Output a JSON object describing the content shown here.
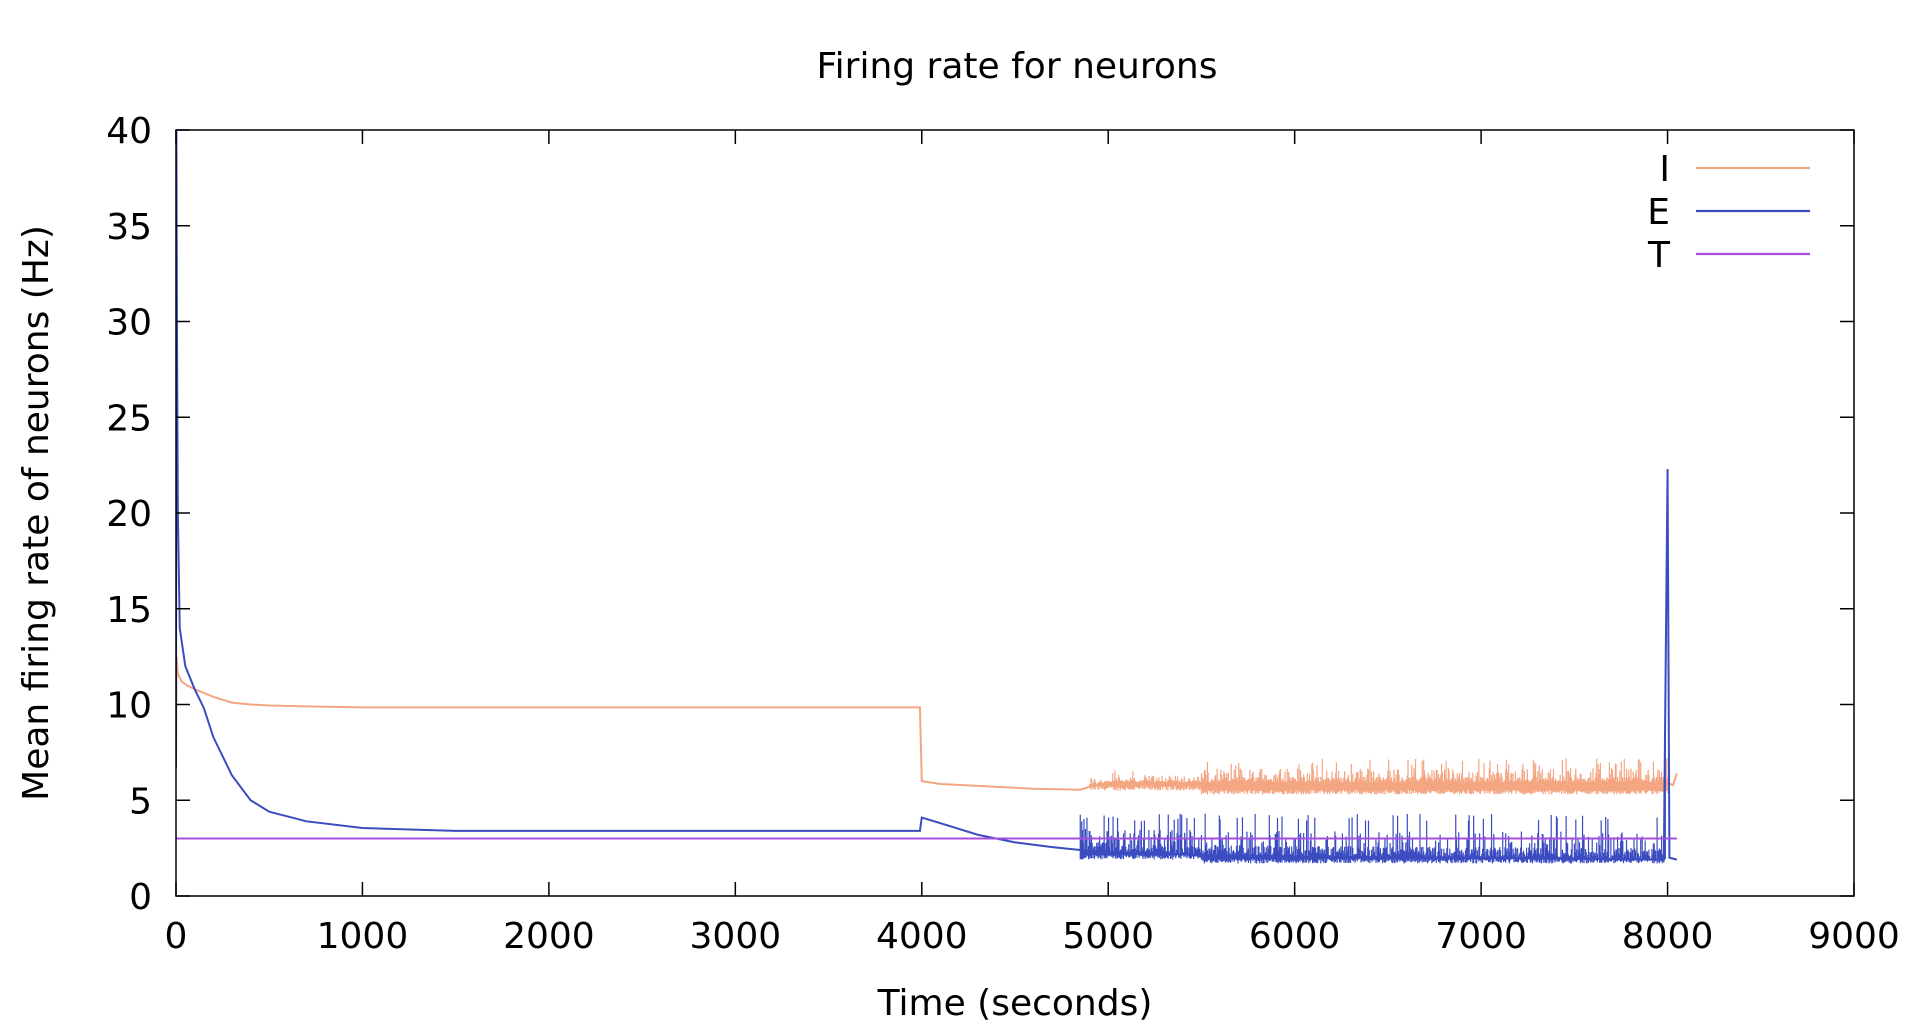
{
  "chart_data": {
    "type": "line",
    "title": "Firing rate for neurons",
    "xlabel": "Time (seconds)",
    "ylabel": "Mean firing rate of neurons (Hz)",
    "xlim": [
      0,
      9000
    ],
    "ylim": [
      0,
      40
    ],
    "xticks": [
      0,
      1000,
      2000,
      3000,
      4000,
      5000,
      6000,
      7000,
      8000,
      9000
    ],
    "yticks": [
      0,
      5,
      10,
      15,
      20,
      25,
      30,
      35,
      40
    ],
    "grid": false,
    "legend_position": "top-right",
    "series": [
      {
        "name": "I",
        "color": "#f4a582",
        "points": [
          [
            0,
            6.7
          ],
          [
            3,
            12.5
          ],
          [
            10,
            11.6
          ],
          [
            30,
            11.2
          ],
          [
            60,
            11.0
          ],
          [
            100,
            10.8
          ],
          [
            200,
            10.4
          ],
          [
            300,
            10.1
          ],
          [
            400,
            10.0
          ],
          [
            500,
            9.95
          ],
          [
            700,
            9.9
          ],
          [
            1000,
            9.85
          ],
          [
            1500,
            9.85
          ],
          [
            2000,
            9.85
          ],
          [
            2500,
            9.85
          ],
          [
            3000,
            9.85
          ],
          [
            3500,
            9.85
          ],
          [
            3990,
            9.85
          ],
          [
            4000,
            6.0
          ],
          [
            4100,
            5.85
          ],
          [
            4300,
            5.75
          ],
          [
            4600,
            5.6
          ],
          [
            4850,
            5.55
          ],
          [
            4900,
            5.7
          ],
          [
            5000,
            5.9
          ],
          [
            5500,
            5.9
          ],
          [
            6000,
            5.9
          ],
          [
            6500,
            5.9
          ],
          [
            7000,
            5.9
          ],
          [
            7500,
            5.9
          ],
          [
            8000,
            5.9
          ],
          [
            8030,
            5.8
          ],
          [
            8050,
            6.4
          ]
        ],
        "noise": [
          {
            "from": 4900,
            "to": 5500,
            "low": 5.5,
            "high": 6.6
          },
          {
            "from": 5500,
            "to": 8000,
            "low": 5.3,
            "high": 7.2
          }
        ]
      },
      {
        "name": "E",
        "color": "#3b4cc0",
        "points": [
          [
            0,
            6.7
          ],
          [
            2,
            40
          ],
          [
            5,
            30
          ],
          [
            10,
            20
          ],
          [
            20,
            14
          ],
          [
            50,
            12
          ],
          [
            100,
            10.8
          ],
          [
            150,
            9.8
          ],
          [
            200,
            8.3
          ],
          [
            300,
            6.3
          ],
          [
            400,
            5.0
          ],
          [
            500,
            4.4
          ],
          [
            700,
            3.9
          ],
          [
            1000,
            3.55
          ],
          [
            1500,
            3.4
          ],
          [
            2000,
            3.4
          ],
          [
            2500,
            3.4
          ],
          [
            3000,
            3.4
          ],
          [
            3500,
            3.4
          ],
          [
            3990,
            3.4
          ],
          [
            4000,
            4.1
          ],
          [
            4100,
            3.8
          ],
          [
            4300,
            3.2
          ],
          [
            4500,
            2.8
          ],
          [
            4700,
            2.55
          ],
          [
            4850,
            2.4
          ],
          [
            5000,
            2.3
          ],
          [
            5500,
            2.15
          ],
          [
            6000,
            2.05
          ],
          [
            7000,
            2.0
          ],
          [
            7980,
            1.9
          ],
          [
            8000,
            22.3
          ],
          [
            8010,
            2.0
          ],
          [
            8050,
            1.9
          ]
        ],
        "noise": [
          {
            "from": 4850,
            "to": 5500,
            "low": 1.9,
            "high": 4.3
          },
          {
            "from": 5500,
            "to": 7990,
            "low": 1.7,
            "high": 4.3
          }
        ]
      },
      {
        "name": "T",
        "color": "#a64ce0",
        "points": [
          [
            0,
            3.0
          ],
          [
            8050,
            3.0
          ]
        ]
      }
    ]
  }
}
